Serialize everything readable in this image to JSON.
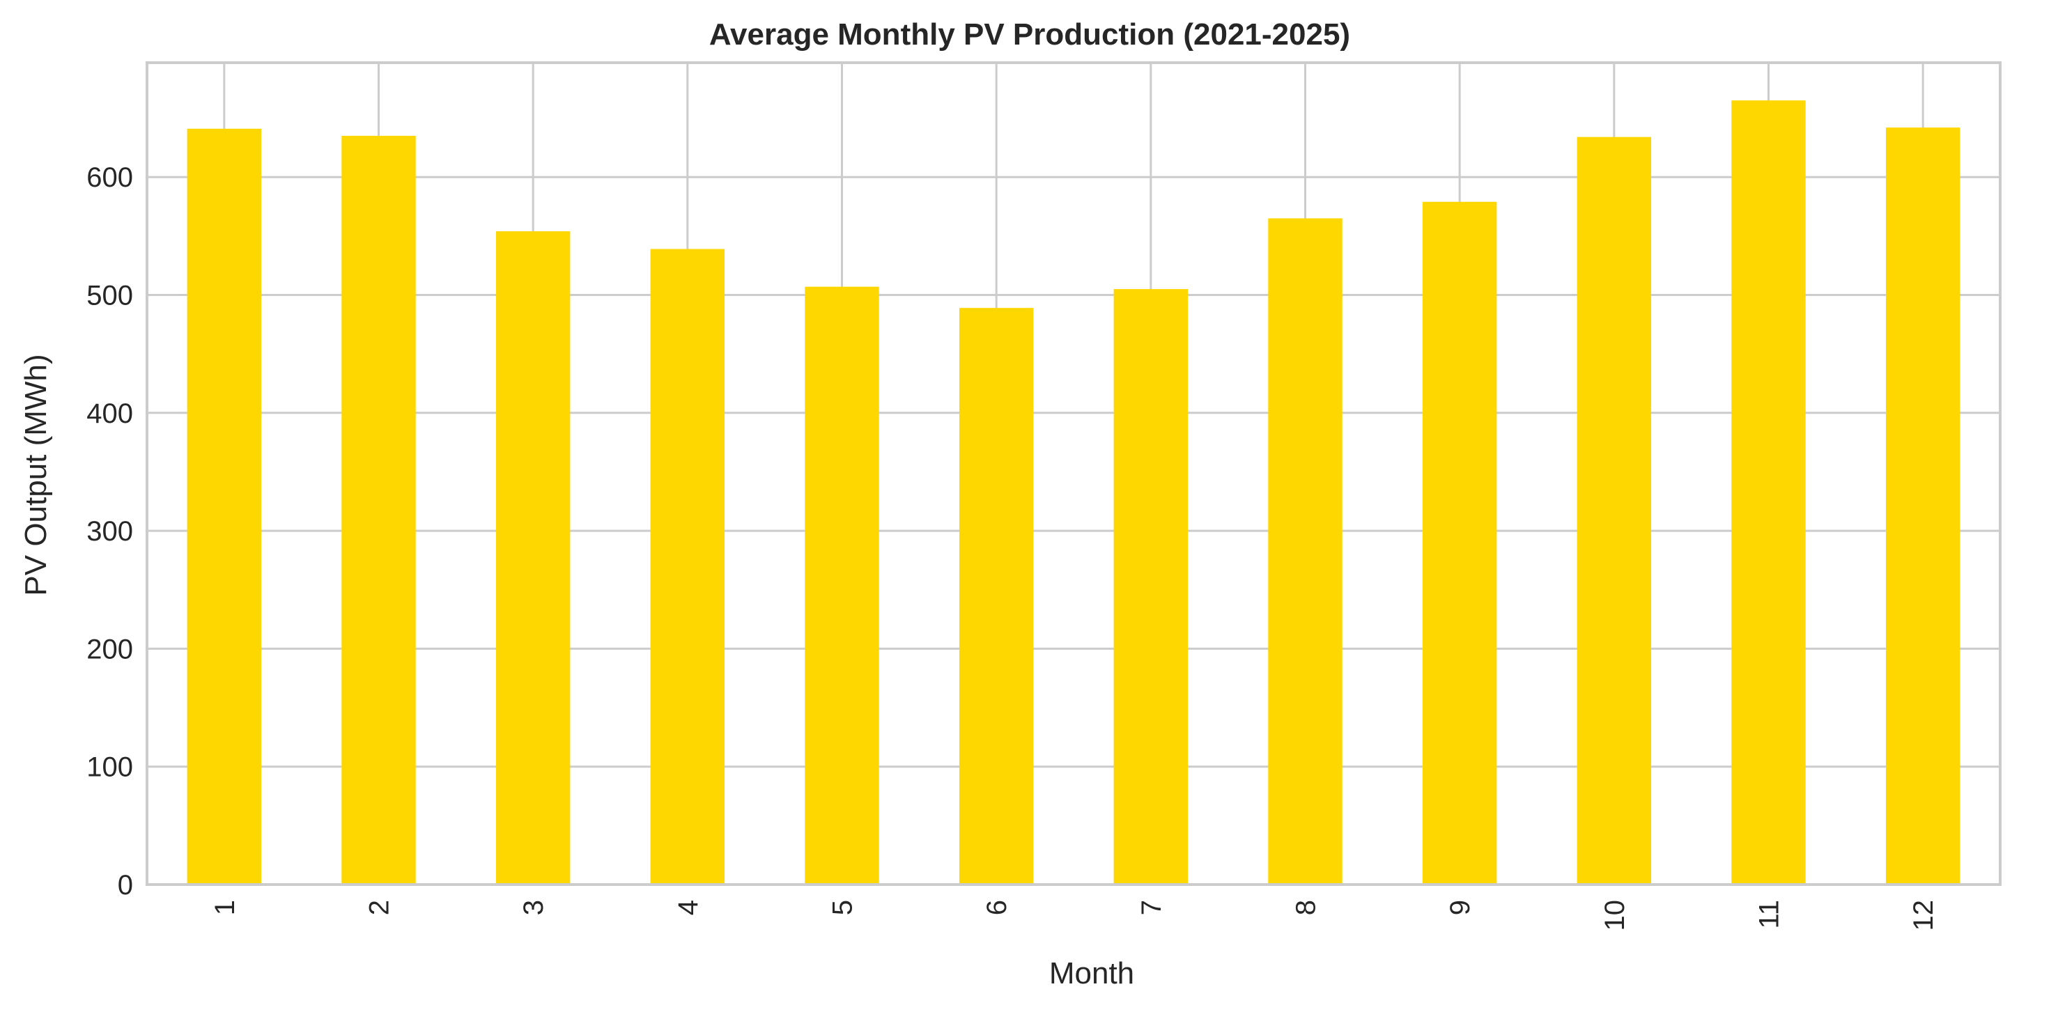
{
  "chart_data": {
    "type": "bar",
    "title": "Average Monthly PV Production (2021-2025)",
    "xlabel": "Month",
    "ylabel": "PV Output (MWh)",
    "categories": [
      "1",
      "2",
      "3",
      "4",
      "5",
      "6",
      "7",
      "8",
      "9",
      "10",
      "11",
      "12"
    ],
    "values": [
      641,
      635,
      554,
      539,
      507,
      489,
      505,
      565,
      579,
      634,
      665,
      642
    ],
    "ylim": [
      0,
      697
    ],
    "yticks": [
      0,
      100,
      200,
      300,
      400,
      500,
      600
    ],
    "grid": true,
    "x_tick_rotation": "vertical",
    "colors": {
      "bar": "#FFD700",
      "grid": "#cccccc",
      "frame": "#cccccc",
      "text": "#262626"
    }
  }
}
